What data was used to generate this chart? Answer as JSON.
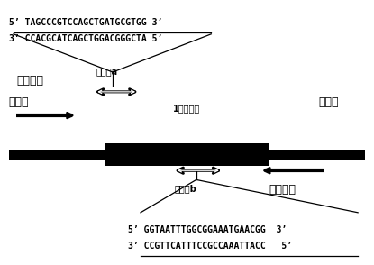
{
  "bg_color": "#ffffff",
  "seq_top_line1": "5’ TAGCCCGTCCAGCTGATGCGTGG 3’",
  "seq_top_line2": "3’ CCACGCATCAGCTGGACGGGCTA 5’",
  "seq_bot_line1": "5’ GGTAATTTGGCGGAAATGAACGG  3’",
  "seq_bot_line2": "3’ CCGTTCATTTCCGCCAAATTACC   5’",
  "label_intron_left": "内含子",
  "label_intron_right": "内含子",
  "label_upstream": "上游引物",
  "label_downstream": "下游引物",
  "label_target_a": "靶位点a",
  "label_target_b": "靶位点b",
  "label_exon": "1号外显子",
  "font_size_seq": 7,
  "font_size_label": 9,
  "font_size_small": 7
}
